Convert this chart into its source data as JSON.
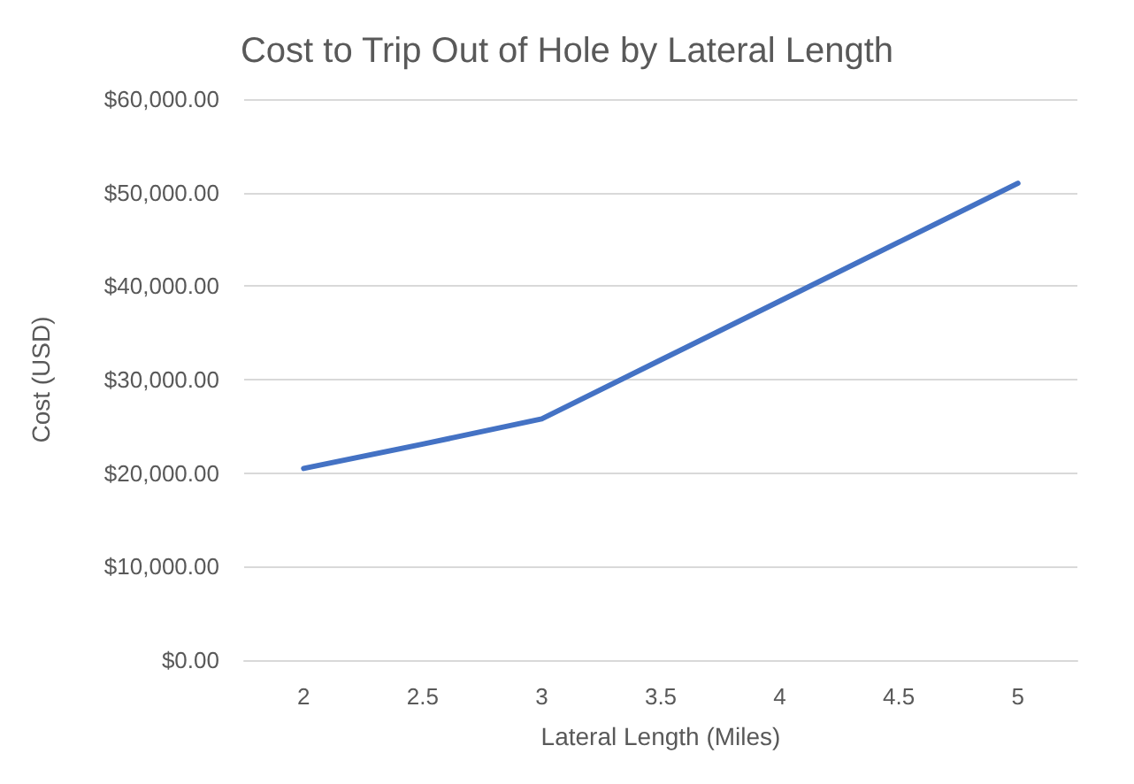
{
  "chart_data": {
    "type": "line",
    "title": "Cost to Trip Out of Hole by Lateral Length",
    "xlabel": "Lateral Length (Miles)",
    "ylabel": "Cost (USD)",
    "categories": [
      "2",
      "2.5",
      "3",
      "3.5",
      "4",
      "4.5",
      "5"
    ],
    "series": [
      {
        "color": "#4472c4",
        "values": [
          20500,
          23100,
          25800,
          32100,
          38400,
          44700,
          51000
        ]
      }
    ],
    "ylim": [
      0,
      60000
    ],
    "yticks": [
      {
        "value": 0,
        "label": "$0.00"
      },
      {
        "value": 10000,
        "label": "$10,000.00"
      },
      {
        "value": 20000,
        "label": "$20,000.00"
      },
      {
        "value": 30000,
        "label": "$30,000.00"
      },
      {
        "value": 40000,
        "label": "$40,000.00"
      },
      {
        "value": 50000,
        "label": "$50,000.00"
      },
      {
        "value": 60000,
        "label": "$60,000.00"
      }
    ],
    "grid": "y",
    "marker": "none",
    "line_style": "solid"
  }
}
